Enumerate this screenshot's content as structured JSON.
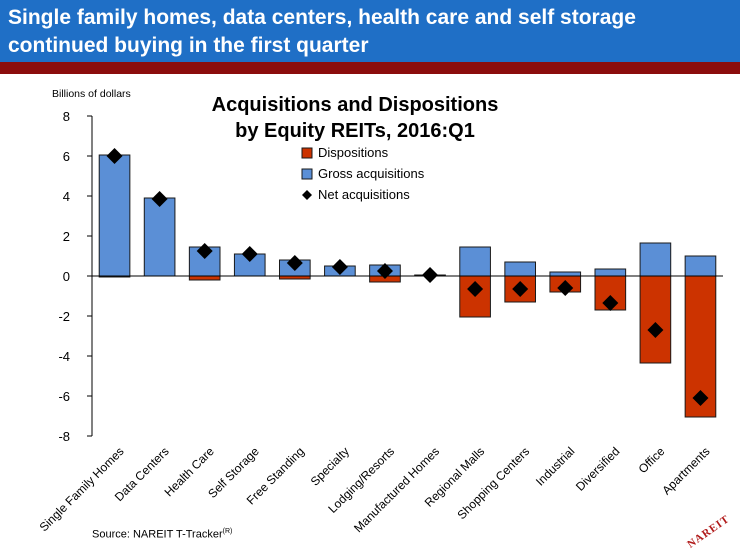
{
  "header": {
    "title": "Single family homes, data centers, health care and self storage continued buying in the first quarter"
  },
  "source": {
    "label": "Source: NAREIT T-Tracker",
    "superscript": "(R)"
  },
  "logo": {
    "text": "NAREIT"
  },
  "colors": {
    "header_bg": "#1f6fc6",
    "header_rule": "#8b0d0d",
    "acquisitions": "#5b8fd6",
    "dispositions": "#cc3300",
    "net": "#000000"
  },
  "chart_data": {
    "type": "bar",
    "title_lines": [
      "Acquisitions and Dispositions",
      "by Equity REITs, 2016:Q1"
    ],
    "ylabel": "Billions of dollars",
    "ylim": [
      -8,
      8
    ],
    "yticks": [
      -8,
      -6,
      -4,
      -2,
      0,
      2,
      4,
      6,
      8
    ],
    "legend_placement": "top-center",
    "categories": [
      "Single Family Homes",
      "Data Centers",
      "Health Care",
      "Self Storage",
      "Free Standing",
      "Specialty",
      "Lodging/Resorts",
      "Manufactured Homes",
      "Regional Malls",
      "Shopping Centers",
      "Industrial",
      "Diversified",
      "Office",
      "Apartments"
    ],
    "series": [
      {
        "name": "Dispositions",
        "kind": "bar",
        "values": [
          -0.05,
          0,
          -0.2,
          0,
          -0.15,
          0,
          -0.3,
          0,
          -2.05,
          -1.3,
          -0.8,
          -1.7,
          -4.35,
          -7.05
        ]
      },
      {
        "name": "Gross acquisitions",
        "kind": "bar",
        "values": [
          6.05,
          3.9,
          1.45,
          1.1,
          0.8,
          0.5,
          0.55,
          0.05,
          1.45,
          0.7,
          0.2,
          0.35,
          1.65,
          1.0
        ]
      },
      {
        "name": "Net acquisitions",
        "kind": "marker",
        "values": [
          6.0,
          3.85,
          1.25,
          1.1,
          0.65,
          0.45,
          0.25,
          0.05,
          -0.65,
          -0.65,
          -0.6,
          -1.35,
          -2.7,
          -6.1
        ]
      }
    ]
  }
}
